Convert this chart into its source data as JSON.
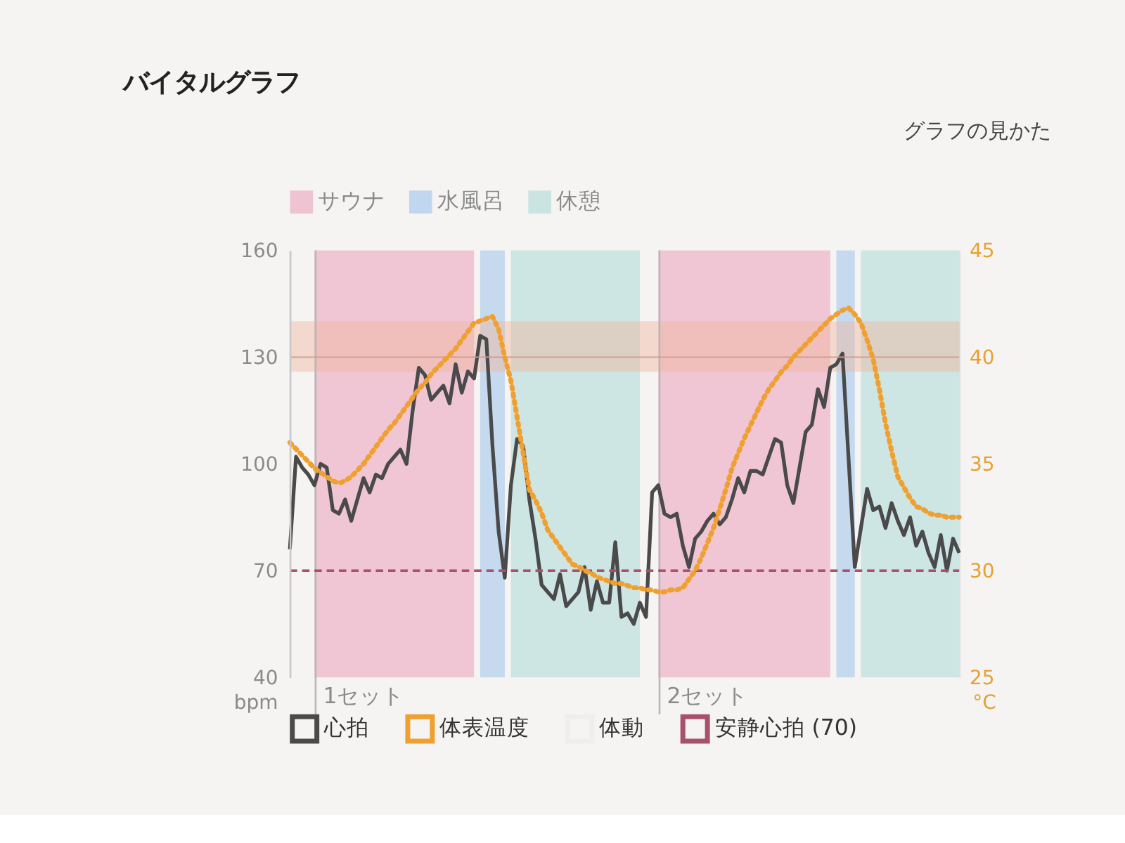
{
  "chart_data": {
    "type": "line",
    "title": "バイタルグラフ",
    "ylabel": "bpm",
    "y2label": "°C",
    "annotations": [
      "グラフの見かた",
      "1セット",
      "2セット"
    ],
    "categories": [
      null,
      null,
      null,
      null,
      null,
      null,
      null,
      null,
      null,
      null,
      null,
      null,
      null,
      null,
      null,
      null,
      null,
      null,
      null,
      null,
      null,
      null,
      null,
      null,
      null,
      null,
      null,
      null,
      null,
      null,
      null,
      null,
      null,
      null,
      null,
      null,
      null,
      null,
      null,
      null,
      null,
      null,
      null,
      null,
      null,
      null,
      null,
      null,
      null,
      null,
      null,
      null,
      null,
      null,
      null,
      null,
      null,
      null,
      null,
      null,
      null,
      null,
      null,
      null,
      null,
      null,
      null,
      null,
      null,
      null,
      null,
      null,
      null,
      null,
      null,
      null,
      null,
      null,
      null,
      null,
      null,
      null,
      null,
      null,
      null,
      null,
      null,
      null,
      null,
      null,
      null,
      null,
      null,
      null,
      null,
      null,
      null,
      null,
      null,
      null,
      null,
      null,
      null,
      null,
      null,
      null,
      null,
      null,
      null,
      null
    ],
    "tick_labels": "y",
    "ylim": [
      40,
      160
    ],
    "yticks": [
      40,
      70,
      100,
      130,
      160
    ],
    "y2lim": [
      25,
      45
    ],
    "y2ticks": [
      25,
      30,
      35,
      40,
      45
    ],
    "grid": false,
    "legend": "bottom",
    "marker": "none",
    "series": [
      {
        "name": "サウナ",
        "type": "area",
        "color": "#eeb6c9",
        "values": [
          null,
          null,
          null,
          null,
          160,
          160,
          160,
          160,
          160,
          160,
          160,
          160,
          160,
          160,
          160,
          160,
          160,
          160,
          160,
          160,
          160,
          160,
          160,
          160,
          160,
          160,
          160,
          160,
          160,
          160,
          160,
          null,
          null,
          null,
          null,
          null,
          null,
          null,
          null,
          null,
          null,
          null,
          null,
          null,
          null,
          null,
          null,
          null,
          null,
          null,
          null,
          null,
          null,
          null,
          null,
          null,
          null,
          null,
          null,
          null,
          160,
          160,
          160,
          160,
          160,
          160,
          160,
          160,
          160,
          160,
          160,
          160,
          160,
          160,
          160,
          160,
          160,
          160,
          160,
          160,
          160,
          160,
          160,
          160,
          160,
          160,
          160,
          160,
          160,
          null,
          null,
          null,
          null,
          null,
          null,
          null,
          null,
          null,
          null,
          null,
          null,
          null,
          null,
          null,
          null,
          null,
          null,
          null,
          null,
          null
        ]
      },
      {
        "name": "水風呂",
        "type": "area",
        "color": "#b4d0ee",
        "values": [
          null,
          null,
          null,
          null,
          null,
          null,
          null,
          null,
          null,
          null,
          null,
          null,
          null,
          null,
          null,
          null,
          null,
          null,
          null,
          null,
          null,
          null,
          null,
          null,
          null,
          null,
          null,
          null,
          null,
          null,
          null,
          160,
          160,
          160,
          160,
          160,
          null,
          null,
          null,
          null,
          null,
          null,
          null,
          null,
          null,
          null,
          null,
          null,
          null,
          null,
          null,
          null,
          null,
          null,
          null,
          null,
          null,
          null,
          null,
          null,
          null,
          null,
          null,
          null,
          null,
          null,
          null,
          null,
          null,
          null,
          null,
          null,
          null,
          null,
          null,
          null,
          null,
          null,
          null,
          null,
          null,
          null,
          null,
          null,
          null,
          null,
          null,
          null,
          null,
          160,
          160,
          160,
          160,
          null,
          null,
          null,
          null,
          null,
          null,
          null,
          null,
          null,
          null,
          null,
          null,
          null,
          null,
          null,
          null,
          null
        ]
      },
      {
        "name": "休憩",
        "type": "area",
        "color": "#bfe0dd",
        "values": [
          null,
          null,
          null,
          null,
          null,
          null,
          null,
          null,
          null,
          null,
          null,
          null,
          null,
          null,
          null,
          null,
          null,
          null,
          null,
          null,
          null,
          null,
          null,
          null,
          null,
          null,
          null,
          null,
          null,
          null,
          null,
          null,
          null,
          null,
          null,
          null,
          160,
          160,
          160,
          160,
          160,
          160,
          160,
          160,
          160,
          160,
          160,
          160,
          160,
          160,
          160,
          160,
          160,
          160,
          160,
          160,
          160,
          160,
          null,
          null,
          null,
          null,
          null,
          null,
          null,
          null,
          null,
          null,
          null,
          null,
          null,
          null,
          null,
          null,
          null,
          null,
          null,
          null,
          null,
          null,
          null,
          null,
          null,
          null,
          null,
          null,
          null,
          null,
          null,
          null,
          null,
          null,
          null,
          160,
          160,
          160,
          160,
          160,
          160,
          160,
          160,
          160,
          160,
          160,
          160,
          160,
          160,
          160,
          160,
          160
        ]
      },
      {
        "name": "心拍",
        "color": "#4a4a4a",
        "line_style": "solid",
        "values": [
          76,
          102,
          99,
          97,
          94,
          100,
          99,
          87,
          86,
          90,
          84,
          90,
          96,
          92,
          97,
          96,
          100,
          102,
          104,
          100,
          115,
          127,
          125,
          118,
          120,
          122,
          117,
          128,
          120,
          126,
          124,
          136,
          135,
          105,
          81,
          68,
          94,
          107,
          105,
          90,
          79,
          66,
          64,
          62,
          69,
          60,
          62,
          64,
          71,
          59,
          67,
          61,
          61,
          78,
          57,
          58,
          55,
          61,
          57,
          92,
          94,
          86,
          85,
          86,
          77,
          71,
          79,
          81,
          84,
          86,
          83,
          85,
          90,
          96,
          92,
          98,
          98,
          97,
          102,
          107,
          106,
          94,
          89,
          99,
          109,
          111,
          121,
          116,
          127,
          128,
          131,
          101,
          71,
          82,
          93,
          87,
          88,
          82,
          89,
          84,
          80,
          85,
          77,
          81,
          75,
          71,
          80,
          70,
          79,
          75
        ]
      },
      {
        "name": "体表温度",
        "color": "#f0a030",
        "line_style": "dotted",
        "axis": "y2",
        "values": [
          36.0,
          35.7,
          35.4,
          35.1,
          34.8,
          34.6,
          34.4,
          34.2,
          34.1,
          34.2,
          34.4,
          34.7,
          35.0,
          35.4,
          35.8,
          36.2,
          36.6,
          36.9,
          37.3,
          37.7,
          38.1,
          38.5,
          38.8,
          39.2,
          39.5,
          39.8,
          40.1,
          40.4,
          40.8,
          41.2,
          41.6,
          41.7,
          41.8,
          41.9,
          41.3,
          40.0,
          38.9,
          37.2,
          35.5,
          33.8,
          33.3,
          32.7,
          31.9,
          31.5,
          31.1,
          30.7,
          30.3,
          30.2,
          30.0,
          29.9,
          29.7,
          29.6,
          29.5,
          29.4,
          29.4,
          29.3,
          29.2,
          29.2,
          29.1,
          29.1,
          29.0,
          29.0,
          29.1,
          29.1,
          29.2,
          29.6,
          30.0,
          30.6,
          31.3,
          32.0,
          32.9,
          33.8,
          34.8,
          35.5,
          36.2,
          36.8,
          37.4,
          38.0,
          38.5,
          38.9,
          39.3,
          39.6,
          40.0,
          40.3,
          40.6,
          40.9,
          41.2,
          41.5,
          41.8,
          42.0,
          42.2,
          42.3,
          42.0,
          41.6,
          40.8,
          39.9,
          38.5,
          36.9,
          35.6,
          34.4,
          33.9,
          33.4,
          33.0,
          32.9,
          32.7,
          32.6,
          32.6,
          32.5,
          32.5,
          32.5
        ]
      },
      {
        "name": "体動",
        "color": "#eeeeee",
        "line_style": "solid",
        "values": [
          null,
          null,
          null,
          null,
          null,
          null,
          null,
          null,
          null,
          null,
          null,
          null,
          null,
          null,
          null,
          null,
          null,
          null,
          null,
          null,
          null,
          null,
          null,
          null,
          null,
          null,
          null,
          null,
          null,
          null,
          null,
          null,
          null,
          null,
          null,
          null,
          null,
          null,
          null,
          null,
          null,
          null,
          null,
          null,
          null,
          null,
          null,
          null,
          null,
          null,
          null,
          null,
          null,
          null,
          null,
          null,
          null,
          null,
          null,
          null,
          null,
          null,
          null,
          null,
          null,
          null,
          null,
          null,
          null,
          null,
          null,
          null,
          null,
          null,
          null,
          null,
          null,
          null,
          null,
          null,
          null,
          null,
          null,
          null,
          null,
          null,
          null,
          null,
          null,
          null,
          null,
          null,
          null,
          null,
          null,
          null,
          null,
          null,
          null,
          null,
          null,
          null,
          null,
          null,
          null,
          null,
          null,
          null,
          null,
          null
        ]
      }
    ],
    "ref_lines": [
      {
        "axis": "y",
        "value": 70,
        "label": "安静心拍 (70)",
        "color": "#a8506e",
        "line_style": "dashed"
      },
      {
        "axis": "y",
        "value": 130,
        "color": "#d09a8a",
        "line_style": "solid"
      }
    ],
    "bands": [
      {
        "axis": "y",
        "from": 126,
        "to": 140,
        "color": "#f0b8a0"
      }
    ]
  }
}
